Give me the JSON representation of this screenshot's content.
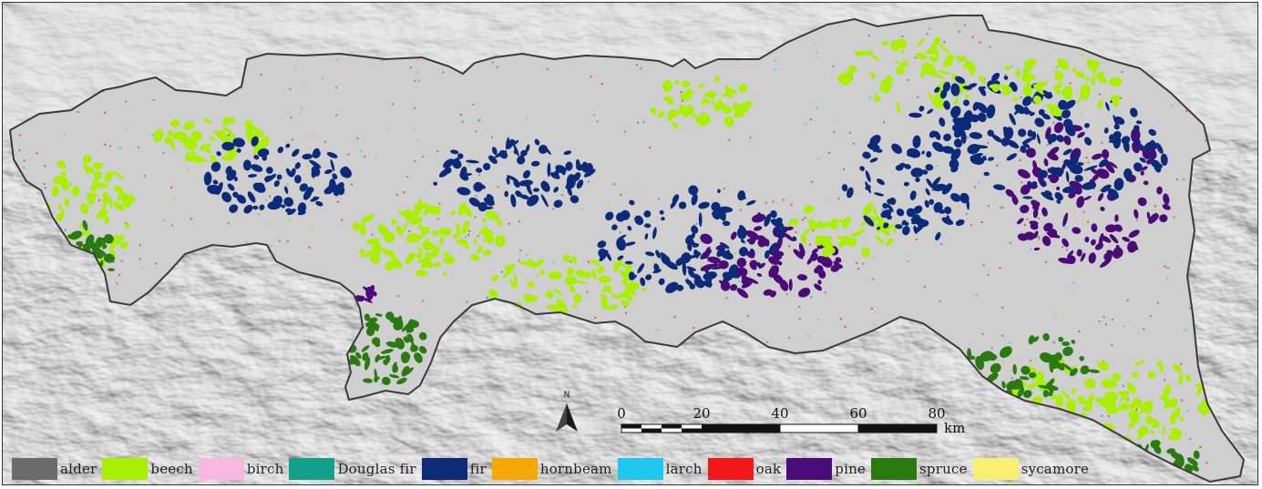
{
  "map": {
    "north_label": "N",
    "scale_bar": {
      "ticks": [
        "0",
        "20",
        "40",
        "60",
        "80"
      ],
      "unit": "km"
    }
  },
  "legend": {
    "items": [
      {
        "label": "alder",
        "color": "#6b6b6b"
      },
      {
        "label": "beech",
        "color": "#a8f000"
      },
      {
        "label": "birch",
        "color": "#f7b8e0"
      },
      {
        "label": "Douglas fir",
        "color": "#12a08a"
      },
      {
        "label": "fir",
        "color": "#0b2a7a"
      },
      {
        "label": "hornbeam",
        "color": "#f5a800"
      },
      {
        "label": "larch",
        "color": "#1ec8f0"
      },
      {
        "label": "oak",
        "color": "#f01818"
      },
      {
        "label": "pine",
        "color": "#4a0a78"
      },
      {
        "label": "spruce",
        "color": "#2a7a10"
      },
      {
        "label": "sycamore",
        "color": "#f7f070"
      }
    ]
  }
}
